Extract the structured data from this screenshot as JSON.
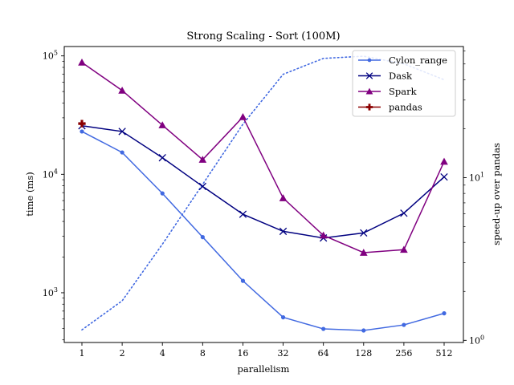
{
  "chart_data": {
    "type": "line",
    "title": "Strong Scaling - Sort (100M)",
    "xlabel": "parallelism",
    "ylabel": "time (ms)",
    "y2label": "speed-up over pandas",
    "x": [
      1,
      2,
      4,
      8,
      16,
      32,
      64,
      128,
      256,
      512
    ],
    "xtick_labels": [
      "1",
      "2",
      "4",
      "8",
      "16",
      "32",
      "64",
      "128",
      "256",
      "512"
    ],
    "yscale": "log",
    "ylim": [
      380,
      120000
    ],
    "yticks": [
      {
        "value": 1000,
        "base": "10",
        "exp": "3"
      },
      {
        "value": 10000,
        "base": "10",
        "exp": "4"
      },
      {
        "value": 100000,
        "base": "10",
        "exp": "5"
      }
    ],
    "y2scale": "log",
    "y2lim": [
      0.97,
      64
    ],
    "y2ticks": [
      {
        "value": 1,
        "base": "10",
        "exp": "0"
      },
      {
        "value": 10,
        "base": "10",
        "exp": "1"
      }
    ],
    "grid": false,
    "legend_position": "top-right",
    "series": [
      {
        "name": "Cylon_range",
        "color": "#4169e1",
        "marker": "circle",
        "line": "solid",
        "axis": "left",
        "values": [
          23000,
          15300,
          6900,
          2950,
          1260,
          620,
          495,
          480,
          535,
          670
        ]
      },
      {
        "name": "Dask",
        "color": "#000080",
        "marker": "x",
        "line": "solid",
        "axis": "left",
        "values": [
          25700,
          23000,
          13800,
          7900,
          4600,
          3300,
          2900,
          3200,
          4700,
          9500
        ]
      },
      {
        "name": "Spark",
        "color": "#800080",
        "marker": "triangle",
        "line": "solid",
        "axis": "left",
        "values": [
          88000,
          51000,
          26000,
          13300,
          30500,
          6300,
          3050,
          2180,
          2310,
          12800
        ]
      },
      {
        "name": "pandas",
        "color": "#8b0000",
        "marker": "plus",
        "line": "solid",
        "axis": "left",
        "x": [
          1
        ],
        "values": [
          26800
        ]
      }
    ],
    "speedup_series": {
      "color": "#4169e1",
      "line": "dotted",
      "axis": "right",
      "values": [
        1.16,
        1.75,
        3.9,
        9.1,
        21.3,
        43.2,
        54.1,
        55.8,
        50.1,
        40.0
      ]
    }
  }
}
